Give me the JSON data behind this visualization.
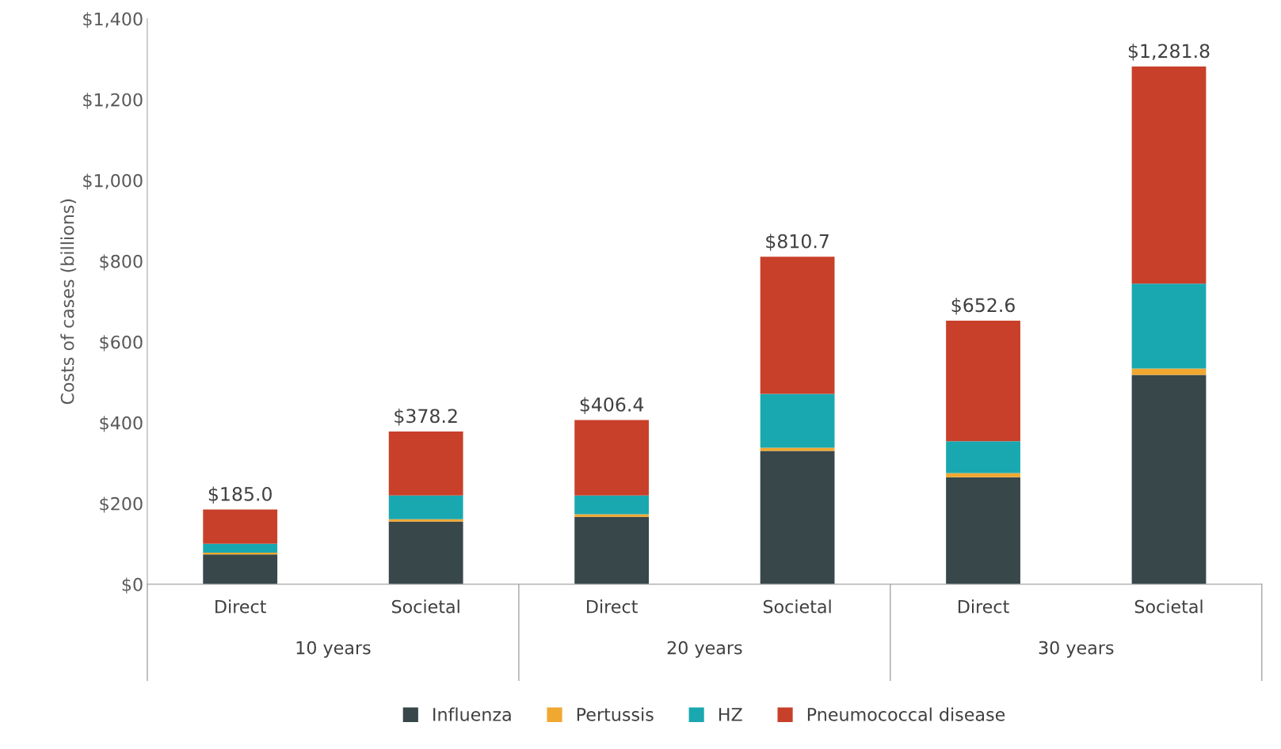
{
  "chart_data": {
    "type": "bar",
    "stacked": true,
    "ylabel": "Costs of cases (billions)",
    "categories": [
      "Direct",
      "Societal",
      "Direct",
      "Societal",
      "Direct",
      "Societal"
    ],
    "series": [
      {
        "name": "Influenza",
        "color": "#37474a",
        "values": [
          74,
          155,
          167,
          330,
          265,
          518
        ]
      },
      {
        "name": "Pertussis",
        "color": "#f0a830",
        "values": [
          4,
          6,
          6,
          8,
          10,
          16
        ]
      },
      {
        "name": "HZ",
        "color": "#1aa8b0",
        "values": [
          22,
          59,
          47,
          133,
          79,
          210
        ]
      },
      {
        "name": "Pneumococcal disease",
        "color": "#c8402a",
        "values": [
          85,
          158.2,
          186.4,
          339.7,
          298.6,
          537.8
        ]
      }
    ],
    "totals": [
      "$185.0",
      "$378.2",
      "$406.4",
      "$810.7",
      "$652.6",
      "$1,281.8"
    ],
    "annotations": [
      "10 years",
      "20 years",
      "30 years"
    ],
    "ylim": [
      0,
      1400
    ],
    "yticks": [
      {
        "value": 0,
        "label": "$0"
      },
      {
        "value": 200,
        "label": "$200"
      },
      {
        "value": 400,
        "label": "$400"
      },
      {
        "value": 600,
        "label": "$600"
      },
      {
        "value": 800,
        "label": "$800"
      },
      {
        "value": 1000,
        "label": "$1,000"
      },
      {
        "value": 1200,
        "label": "$1,200"
      },
      {
        "value": 1400,
        "label": "$1,400"
      }
    ],
    "grid": false,
    "legend": "bottom"
  }
}
